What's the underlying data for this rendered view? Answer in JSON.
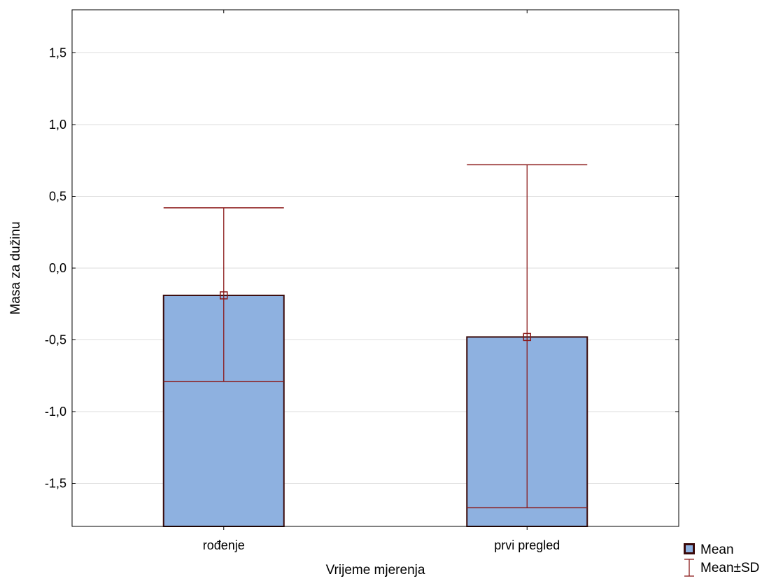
{
  "chart_data": {
    "type": "bar",
    "xlabel": "Vrijeme mjerenja",
    "ylabel": "Masa za dužinu",
    "ylim": [
      -1.8,
      1.8
    ],
    "yticks": [
      -1.5,
      -1.0,
      -0.5,
      0.0,
      0.5,
      1.0,
      1.5
    ],
    "ytick_labels": [
      "-1,5",
      "-1,0",
      "-0,5",
      "0,0",
      "0,5",
      "1,0",
      "1,5"
    ],
    "categories": [
      "rođenje",
      "prvi pregled"
    ],
    "series": [
      {
        "name": "Mean",
        "values": [
          -0.19,
          -0.48
        ]
      }
    ],
    "sd_range": [
      {
        "lower": -0.79,
        "upper": 0.42
      },
      {
        "lower": -1.67,
        "upper": 0.72
      }
    ],
    "grid": true,
    "legend": {
      "placement": "bottom-right",
      "entries": [
        "Mean",
        "Mean±SD"
      ]
    },
    "colors": {
      "bar_fill": "#8EB1E0",
      "bar_edge": "#3A0A0A",
      "whisker": "#8B1A1A",
      "grid": "#DDDDDD",
      "axes": "#000000"
    }
  }
}
